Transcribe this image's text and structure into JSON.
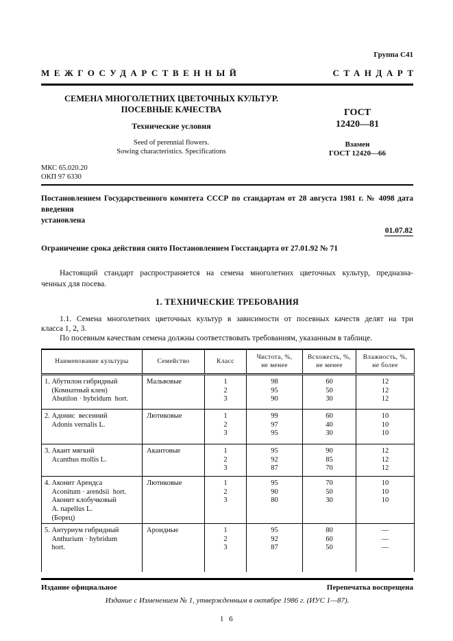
{
  "header": {
    "group": "Группа С41",
    "word1": "МЕЖГОСУДАРСТВЕННЫЙ",
    "word2": "СТАНДАРТ"
  },
  "title_block": {
    "title_line1": "СЕМЕНА МНОГОЛЕТНИХ ЦВЕТОЧНЫХ КУЛЬТУР.",
    "title_line2": "ПОСЕВНЫЕ КАЧЕСТВА",
    "subtitle": "Технические условия",
    "en_line1": "Seed of perennial flowers.",
    "en_line2": "Sowing characteristics. Specifications",
    "gost_label": "ГОСТ",
    "gost_number": "12420—81",
    "replaces_label": "Взамен",
    "replaces_number": "ГОСТ 12420—66"
  },
  "codes": {
    "mks": "МКС 65.020.20",
    "okp": "ОКП 97 6330"
  },
  "decree": {
    "line1": "Постановлением Государственного комитета СССР по стандартам от 28 августа 1981 г. № 4098 дата введения",
    "line2": "установлена",
    "date": "01.07.82",
    "limitation": "Ограничение срока действия снято Постановлением Госстандарта от 27.01.92 № 71"
  },
  "intro": {
    "line1": "Настоящий стандарт распространяется на семена многолетних цветочных культур, предназна-",
    "line2": "ченных для посева."
  },
  "section1": {
    "heading": "1. ТЕХНИЧЕСКИЕ ТРЕБОВАНИЯ",
    "p11_line1": "1.1. Семена многолетних цветочных культур в зависимости от посевных качеств делят на три",
    "p11_line2": "класса 1, 2, 3.",
    "p11_line3": "По посевным качествам семена должны соответствовать требованиям, указанным в таблице."
  },
  "table": {
    "headers": [
      "Наименование культуры",
      "Семейство",
      "Класс",
      "Чистота, %,\nне менее",
      "Всхожесть, %,\nне менее",
      "Влажность, %,\nне более"
    ],
    "rows": [
      {
        "name": "1. Абутилон гибридный\n    (Комнатный клен)\n    Abutilon · hybridum  hort.",
        "family": "Мальвовые",
        "class": "1\n2\n3",
        "purity": "98\n95\n90",
        "germination": "60\n50\n30",
        "moisture": "12\n12\n12"
      },
      {
        "name": "2. Адонис  весенний\n    Adonis vernalis L.",
        "family": "Лютиковые",
        "class": "1\n2\n3",
        "purity": "99\n97\n95",
        "germination": "60\n40\n30",
        "moisture": "10\n10\n10"
      },
      {
        "name": "3. Акант мягкий\n    Acanthus mollis L.",
        "family": "Акантовые",
        "class": "1\n2\n3",
        "purity": "95\n92\n87",
        "germination": "90\n85\n70",
        "moisture": "12\n12\n12"
      },
      {
        "name": "4. Аконит Арендса\n    Aconitum · arendsii  hort.\n    Аконит клобучковый\n    A. napellus L.\n    (Борец)",
        "family": "Лютиковые",
        "class": "1\n2\n3",
        "purity": "95\n90\n80",
        "germination": "70\n50\n30",
        "moisture": "10\n10\n10"
      },
      {
        "name": "5. Антуриум гибридный\n    Anthurium · hybridum\n    hort.",
        "family": "Ароидные",
        "class": "1\n2\n3",
        "purity": "95\n92\n87",
        "germination": "80\n60\n50",
        "moisture": "—\n—\n—"
      }
    ]
  },
  "footer": {
    "official": "Издание официальное",
    "reprint": "Перепечатка воспрещена",
    "note": "Издание с Изменением № 1, утвержденным в октябре 1986 г. (ИУС 1—87).",
    "page_number": "1 6"
  }
}
